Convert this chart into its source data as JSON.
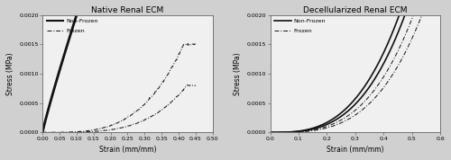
{
  "left_title": "Native Renal ECM",
  "right_title": "Decellularized Renal ECM",
  "xlabel": "Strain (mm/mm)",
  "ylabel": "Stress (MPa)",
  "ylim": [
    0,
    0.002
  ],
  "left_xlim": [
    0,
    0.5
  ],
  "right_xlim": [
    0,
    0.6
  ],
  "left_xticks": [
    0,
    0.05,
    0.1,
    0.15,
    0.2,
    0.25,
    0.3,
    0.35,
    0.4,
    0.45,
    0.5
  ],
  "right_xticks": [
    0,
    0.1,
    0.2,
    0.3,
    0.4,
    0.5,
    0.6
  ],
  "yticks": [
    0,
    0.0005,
    0.001,
    0.0015,
    0.002
  ],
  "legend_nonfrozen": "Non-Frozen",
  "legend_frozen": "Frozen",
  "bg_color": "#f0f0f0",
  "outer_bg": "#d0d0d0",
  "line_color": "#111111"
}
